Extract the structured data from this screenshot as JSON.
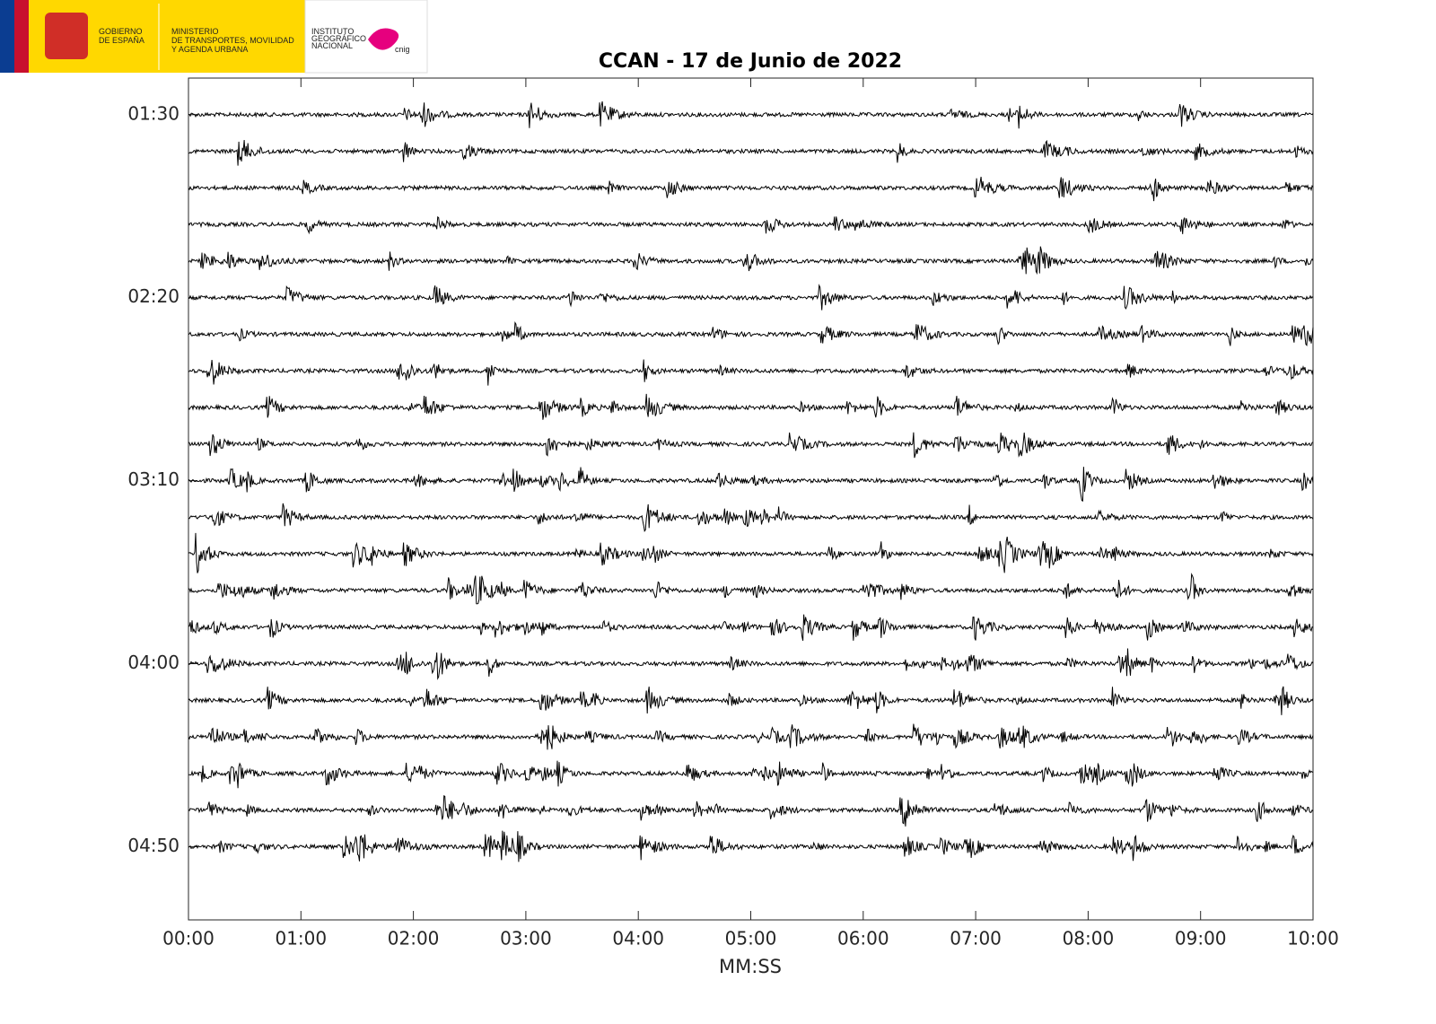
{
  "logo": {
    "government": [
      "GOBIERNO",
      "DE ESPAÑA"
    ],
    "ministry": [
      "MINISTERIO",
      "DE TRANSPORTES, MOVILIDAD",
      "Y AGENDA URBANA"
    ],
    "institute": [
      "INSTITUTO",
      "GEOGRÁFICO",
      "NACIONAL"
    ],
    "brand": "cnig"
  },
  "chart_data": {
    "type": "helicorder",
    "title": "CCAN - 17 de Junio de 2022",
    "x_label": "MM:SS",
    "color": "#000000",
    "xlim": [
      0,
      600
    ],
    "xticks": [
      {
        "value": 0,
        "label": "00:00"
      },
      {
        "value": 60,
        "label": "01:00"
      },
      {
        "value": 120,
        "label": "02:00"
      },
      {
        "value": 180,
        "label": "03:00"
      },
      {
        "value": 240,
        "label": "04:00"
      },
      {
        "value": 300,
        "label": "05:00"
      },
      {
        "value": 360,
        "label": "06:00"
      },
      {
        "value": 420,
        "label": "07:00"
      },
      {
        "value": 480,
        "label": "08:00"
      },
      {
        "value": 540,
        "label": "09:00"
      },
      {
        "value": 600,
        "label": "10:00"
      }
    ],
    "ylim": [
      80,
      310
    ],
    "yticks": [
      {
        "value": 90,
        "label": "01:30"
      },
      {
        "value": 140,
        "label": "02:20"
      },
      {
        "value": 190,
        "label": "03:10"
      },
      {
        "value": 240,
        "label": "04:00"
      },
      {
        "value": 290,
        "label": "04:50"
      }
    ]
  }
}
